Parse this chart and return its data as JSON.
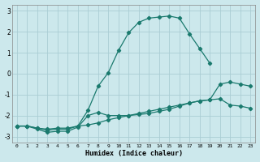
{
  "xlabel": "Humidex (Indice chaleur)",
  "bg_color": "#cce8ec",
  "grid_color": "#aacdd4",
  "line_color": "#1a7a6e",
  "xlim": [
    -0.5,
    23.5
  ],
  "ylim": [
    -3.3,
    3.3
  ],
  "xticks": [
    0,
    1,
    2,
    3,
    4,
    5,
    6,
    7,
    8,
    9,
    10,
    11,
    12,
    13,
    14,
    15,
    16,
    17,
    18,
    19,
    20,
    21,
    22,
    23
  ],
  "yticks": [
    -3,
    -2,
    -1,
    0,
    1,
    2,
    3
  ],
  "line1_x": [
    0,
    1,
    2,
    3,
    4,
    5,
    6,
    7,
    8,
    9,
    10,
    11,
    12,
    13,
    14,
    15,
    16,
    17,
    18,
    19,
    20,
    21,
    22,
    23
  ],
  "line1_y": [
    -2.5,
    -2.5,
    -2.6,
    -2.65,
    -2.6,
    -2.6,
    -2.5,
    -2.45,
    -2.35,
    -2.2,
    -2.1,
    -2.0,
    -1.9,
    -1.8,
    -1.7,
    -1.6,
    -1.5,
    -1.4,
    -1.3,
    -1.25,
    -1.2,
    -1.5,
    -1.55,
    -1.65
  ],
  "line2_x": [
    0,
    1,
    2,
    3,
    4,
    5,
    6,
    7,
    8,
    9,
    10,
    11,
    12,
    13,
    14,
    15,
    16,
    17,
    18,
    19,
    20,
    21,
    22,
    23
  ],
  "line2_y": [
    -2.5,
    -2.5,
    -2.65,
    -2.8,
    -2.75,
    -2.75,
    -2.55,
    -2.0,
    -1.85,
    -2.0,
    -2.0,
    -2.0,
    -1.95,
    -1.9,
    -1.8,
    -1.7,
    -1.55,
    -1.4,
    -1.3,
    -1.25,
    -0.5,
    -0.4,
    -0.5,
    -0.6
  ],
  "line3_x": [
    0,
    1,
    2,
    3,
    4,
    5,
    6,
    7,
    8,
    9,
    10,
    11,
    12,
    13,
    14,
    15,
    16,
    17,
    18,
    19
  ],
  "line3_y": [
    -2.5,
    -2.5,
    -2.6,
    -2.7,
    -2.65,
    -2.65,
    -2.5,
    -1.75,
    -0.6,
    0.05,
    1.1,
    1.95,
    2.45,
    2.65,
    2.7,
    2.75,
    2.65,
    1.9,
    1.2,
    0.5
  ]
}
